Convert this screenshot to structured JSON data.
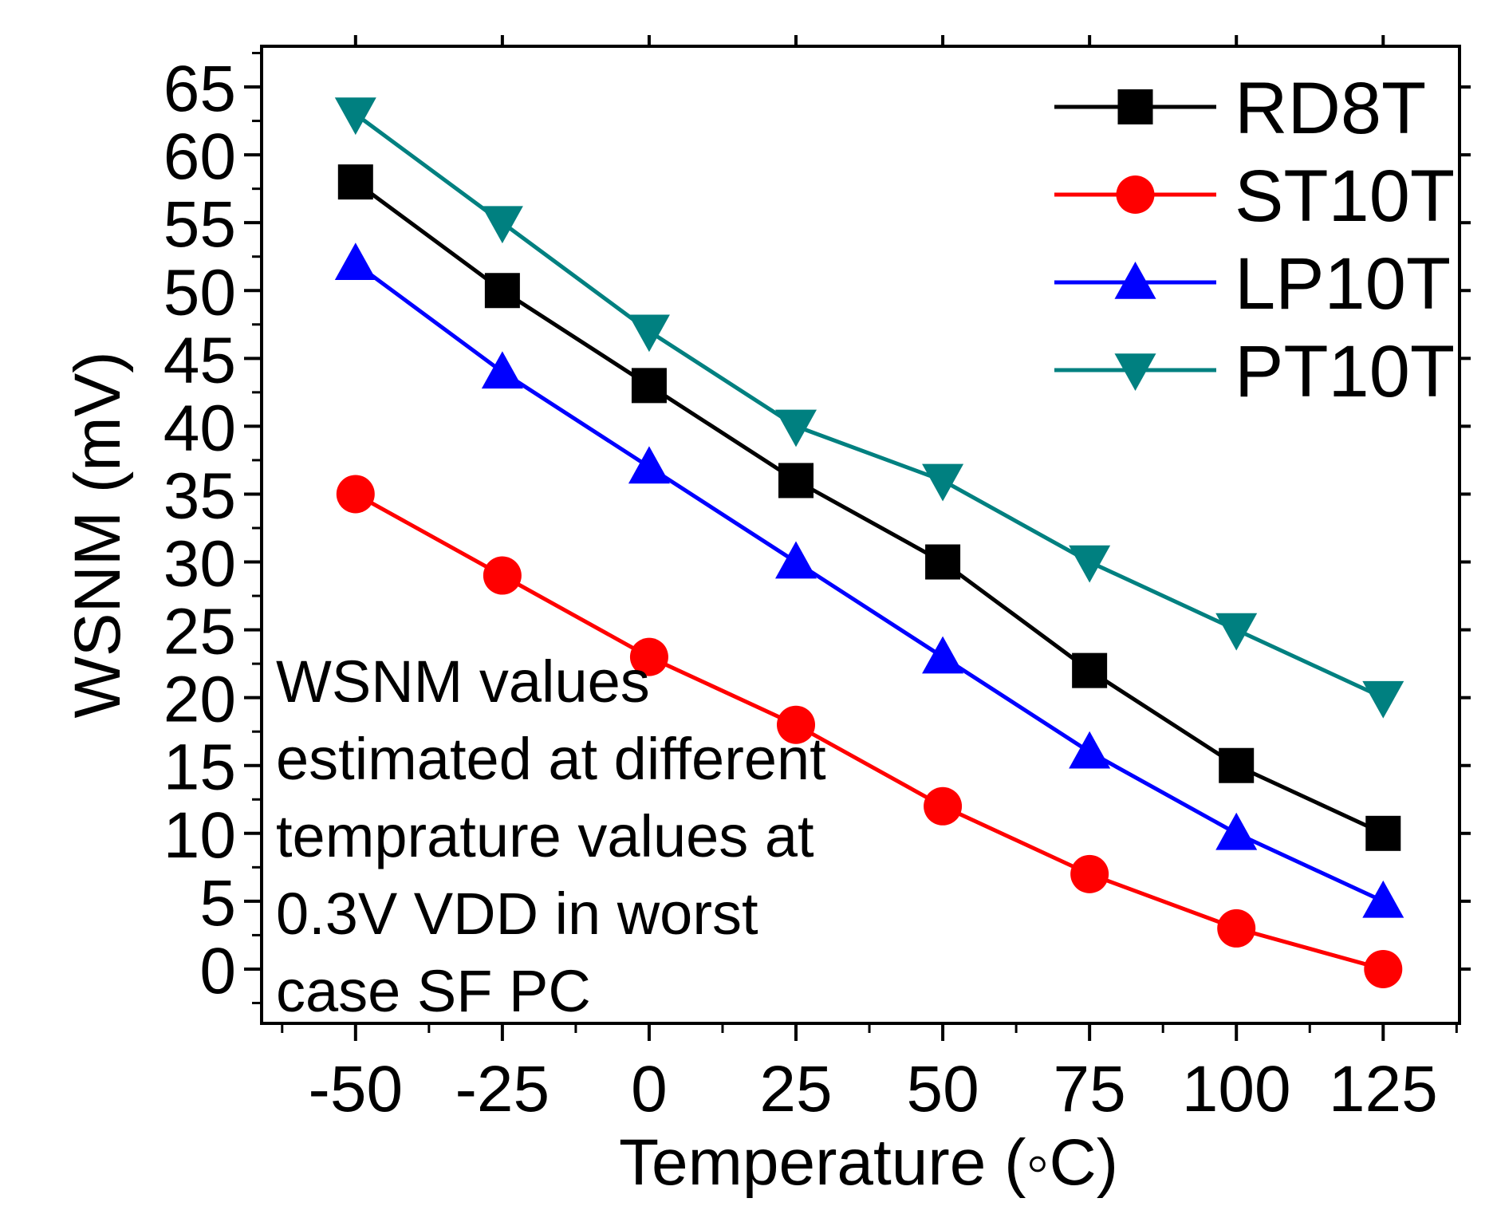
{
  "chart_data": {
    "type": "line",
    "title": "",
    "xlabel": "Temperature (◦C)",
    "ylabel": "WSNM (mV)",
    "x": [
      -50,
      -25,
      0,
      25,
      50,
      75,
      100,
      125
    ],
    "xlim": [
      -66,
      138
    ],
    "ylim": [
      -4,
      68
    ],
    "xticks": [
      -50,
      -25,
      0,
      25,
      50,
      75,
      100,
      125
    ],
    "xtick_labels": [
      "-50",
      "-25",
      "0",
      "25",
      "50",
      "75",
      "100",
      "125"
    ],
    "yticks": [
      0,
      5,
      10,
      15,
      20,
      25,
      30,
      35,
      40,
      45,
      50,
      55,
      60,
      65
    ],
    "ytick_labels": [
      "0",
      "5",
      "10",
      "15",
      "20",
      "25",
      "30",
      "35",
      "40",
      "45",
      "50",
      "55",
      "60",
      "65"
    ],
    "grid": false,
    "legend_position": "top-right",
    "series": [
      {
        "name": "RD8T",
        "color": "#000000",
        "marker": "square",
        "values": [
          58,
          50,
          43,
          36,
          30,
          22,
          15,
          10
        ]
      },
      {
        "name": "ST10T",
        "color": "#ff0000",
        "marker": "circle",
        "values": [
          35,
          29,
          23,
          18,
          12,
          7,
          3,
          0
        ]
      },
      {
        "name": "LP10T",
        "color": "#0000ff",
        "marker": "triangle-up",
        "values": [
          52,
          44,
          37,
          30,
          23,
          16,
          10,
          5
        ]
      },
      {
        "name": "PT10T",
        "color": "#008080",
        "marker": "triangle-down",
        "values": [
          63,
          55,
          47,
          40,
          36,
          30,
          25,
          20
        ]
      }
    ],
    "annotation": {
      "position": "bottom-left",
      "lines": [
        "WSNM values",
        "estimated at different",
        "temprature values at",
        "0.3V VDD in worst",
        "case SF PC"
      ]
    }
  }
}
